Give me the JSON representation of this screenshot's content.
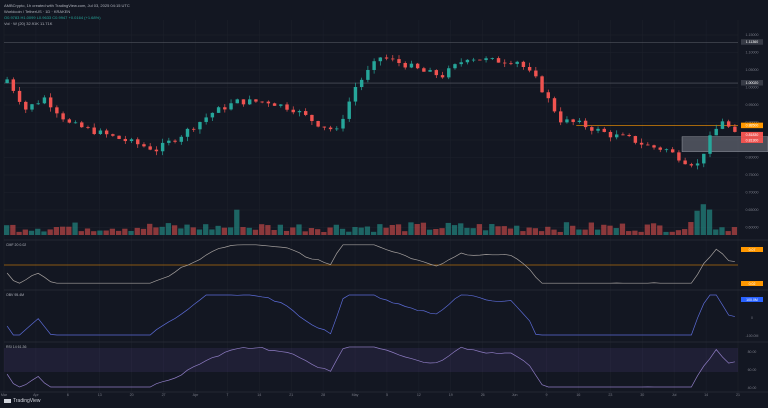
{
  "header": {
    "publisher": "AMBCrypto, 1h created with TradingView.com, Jul 03, 2025 04:15 UTC",
    "symbol": "Worldcoin / TetherUS · 1D · KRAKEN",
    "ohlc": "O0.9783  H1.0099  L0.9633  C0.9947  +0.0164 (+1.68%)",
    "volume": "Vol · W (20)  32.91K  11.71K"
  },
  "chart_data": {
    "type": "candlestick",
    "price_axis": {
      "ticks": [
        "1.15000",
        "1.10000",
        "1.05000",
        "1.00000",
        "0.95000",
        "0.90000",
        "0.85000",
        "0.80000",
        "0.75000",
        "0.70000",
        "0.65000",
        "0.60000"
      ]
    },
    "price_labels": [
      {
        "text": "1.11360",
        "color": "#363a45"
      },
      {
        "text": "1.00020",
        "color": "#363a45"
      },
      {
        "text": "0.88500",
        "color": "#ff9800"
      },
      {
        "text": "0.81830",
        "color": "#ef5350"
      },
      {
        "text": "0.81300",
        "color": "#ef5350"
      }
    ],
    "indicators": [
      {
        "name": "CMF",
        "header": "CMF  20  0.02",
        "ticks": [
          "0.07",
          "0.02"
        ],
        "highlight_color": "#ff9800"
      },
      {
        "name": "OBV",
        "header": "OBV  95.4M",
        "ticks": [
          "100.0M",
          "0",
          "-100.0M"
        ],
        "highlight_color": "#2962ff"
      },
      {
        "name": "RSI",
        "header": "RSI 14  61.36",
        "ticks": [
          "80.00",
          "60.00",
          "40.00"
        ],
        "highlight_color": "#7e57c2"
      }
    ],
    "x_ticks": [
      "Mar",
      "Apr",
      "6",
      "13",
      "20",
      "27",
      "Apr",
      "7",
      "14",
      "21",
      "28",
      "May",
      "5",
      "12",
      "19",
      "26",
      "Jun",
      "9",
      "16",
      "23",
      "30",
      "Jul",
      "14",
      "21"
    ],
    "colors": {
      "up": "#26a69a",
      "down": "#ef5350",
      "background": "#131722"
    }
  },
  "brand": "TradingView"
}
